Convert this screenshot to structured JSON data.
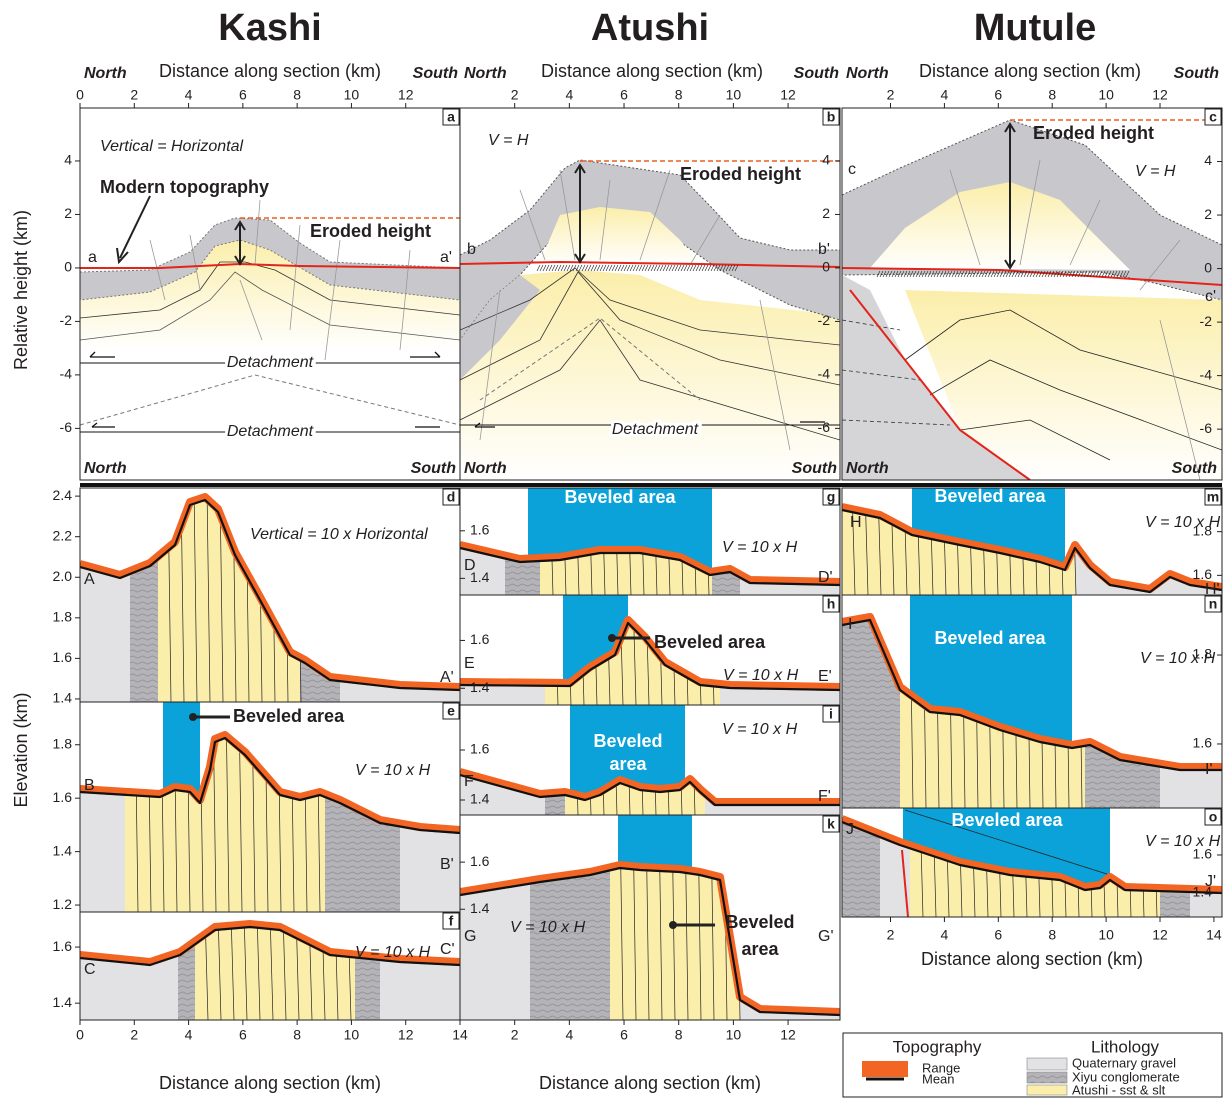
{
  "titles": [
    "Kashi",
    "Atushi",
    "Mutule"
  ],
  "x_axis_label": "Distance along section (km)",
  "north": "North",
  "south": "South",
  "relative_height_label": "Relative height (km)",
  "elevation_label": "Elevation (km)",
  "panels": [
    {
      "letter": "a",
      "xlim": [
        0,
        14
      ],
      "ylim": [
        -7.93,
        5.98
      ],
      "xticks": [
        0,
        2,
        4,
        6,
        8,
        10,
        12
      ],
      "yticks": [
        4,
        2,
        0,
        -2,
        -4,
        -6
      ],
      "texts": [
        "a",
        "a'",
        "Vertical = Horizontal",
        "Modern topography",
        "Eroded height",
        "Detachment",
        "Detachment"
      ]
    },
    {
      "letter": "b",
      "xlim": [
        0,
        13.9
      ],
      "ylim": [
        -7.93,
        5.98
      ],
      "xticks": [
        2,
        4,
        6,
        8,
        10,
        12
      ],
      "yticks": [
        4,
        2,
        0,
        -2,
        -4,
        -6
      ],
      "texts": [
        "b",
        "b'",
        "V = H",
        "Eroded height",
        "Detachment"
      ]
    },
    {
      "letter": "c",
      "xlim": [
        0.2,
        14.3
      ],
      "ylim": [
        -7.9,
        6.0
      ],
      "xticks": [
        2,
        4,
        6,
        8,
        10,
        12
      ],
      "yticks": [
        4,
        2,
        0,
        -2,
        -4,
        -6
      ],
      "texts": [
        "c",
        "c'",
        "Eroded height",
        "V = H"
      ]
    },
    {
      "letter": "d",
      "ylim": [
        1.385,
        2.44
      ],
      "yticks": [
        2.4,
        2.2,
        {
          "value": 2,
          "label": "2.0"
        },
        1.8,
        1.6,
        1.4
      ],
      "texts": [
        "A",
        "A'",
        "Vertical = 10 x Horizontal"
      ]
    },
    {
      "letter": "e",
      "ylim": [
        1.174,
        1.96
      ],
      "yticks": [
        1.8,
        1.6,
        1.4,
        1.2
      ],
      "texts": [
        "B",
        "B'",
        "Beveled area",
        "V = 10 x H"
      ]
    },
    {
      "letter": "f",
      "xlim": [
        0,
        14
      ],
      "ylim": [
        1.34,
        1.725
      ],
      "xticks": [
        0,
        2,
        4,
        6,
        8,
        10,
        12,
        14
      ],
      "yticks": [
        1.6,
        1.4
      ],
      "texts": [
        "C",
        "C'",
        "V = 10 x H"
      ]
    },
    {
      "letter": "g",
      "ylim": [
        1.33,
        1.78
      ],
      "yticks": [
        1.6,
        1.4
      ],
      "texts": [
        "D",
        "D'",
        "Beveled area",
        "V = 10 x H"
      ]
    },
    {
      "letter": "h",
      "ylim": [
        1.33,
        1.79
      ],
      "yticks": [
        1.6,
        1.4
      ],
      "texts": [
        "E",
        "E'",
        "Beveled area",
        "V = 10 x H"
      ]
    },
    {
      "letter": "i",
      "ylim": [
        1.34,
        1.78
      ],
      "yticks": [
        1.6,
        1.4
      ],
      "texts": [
        "F",
        "F'",
        "Beveled",
        "area",
        "V = 10 x H"
      ]
    },
    {
      "letter": "k",
      "xlim": [
        0,
        13.9
      ],
      "ylim": [
        0.93,
        1.8
      ],
      "xticks": [
        2,
        4,
        6,
        8,
        10,
        12
      ],
      "yticks": [
        1.6,
        1.4
      ],
      "texts": [
        "G",
        "G'",
        "Beveled",
        "area",
        "V = 10 x H"
      ]
    },
    {
      "letter": "m",
      "ylim": [
        1.51,
        2.0
      ],
      "yticks": [
        1.8,
        1.6
      ],
      "texts": [
        "H",
        "H'",
        "Beveled area",
        "V = 10 x H"
      ]
    },
    {
      "letter": "n",
      "ylim": [
        1.456,
        1.935
      ],
      "yticks": [
        1.8,
        1.6
      ],
      "texts": [
        "I",
        "I'",
        "Beveled area",
        "V = 10 x H"
      ]
    },
    {
      "letter": "o",
      "xlim": [
        0.2,
        14.3
      ],
      "ylim": [
        1.27,
        1.85
      ],
      "xticks": [
        2,
        4,
        6,
        8,
        10,
        12,
        14
      ],
      "yticks": [
        1.6,
        1.4
      ],
      "texts": [
        "J",
        "J'",
        "Beveled area",
        "V = 10 x H"
      ]
    }
  ],
  "legend": {
    "topography": "Topography",
    "range": "Range",
    "mean": "Mean",
    "lithology": "Lithology",
    "items": [
      "Quaternary gravel",
      "Xiyu conglomerate",
      "Atushi - sst & slt"
    ]
  }
}
